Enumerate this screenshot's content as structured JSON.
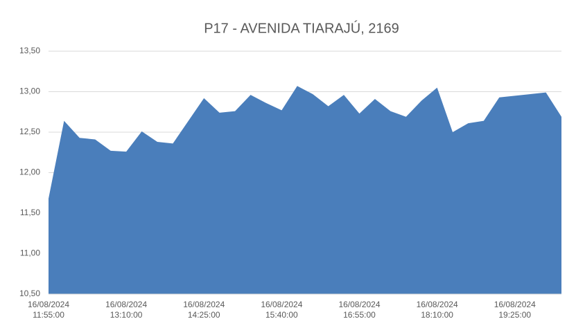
{
  "chart_data": {
    "type": "area",
    "title": "P17 - AVENIDA TIARAJÚ, 2169",
    "categories": [
      "16/08/2024 11:55:00",
      null,
      null,
      null,
      null,
      "16/08/2024 13:10:00",
      null,
      null,
      null,
      null,
      "16/08/2024 14:25:00",
      null,
      null,
      null,
      null,
      "16/08/2024 15:40:00",
      null,
      null,
      null,
      null,
      "16/08/2024 16:55:00",
      null,
      null,
      null,
      null,
      "16/08/2024 18:10:00",
      null,
      null,
      null,
      null,
      "16/08/2024 19:25:00",
      null,
      null,
      null
    ],
    "values": [
      11.68,
      12.64,
      12.43,
      12.41,
      12.27,
      12.26,
      12.51,
      12.38,
      12.36,
      12.64,
      12.92,
      12.74,
      12.76,
      12.96,
      12.86,
      12.77,
      13.07,
      12.97,
      12.82,
      12.96,
      12.73,
      12.91,
      12.76,
      12.69,
      12.89,
      13.05,
      12.5,
      12.61,
      12.64,
      12.93,
      12.95,
      12.97,
      12.99,
      12.69
    ],
    "color": "#4a7ebb",
    "ylim": [
      10.5,
      13.5
    ],
    "yticks": [
      {
        "value": 10.5,
        "label": "10,50"
      },
      {
        "value": 11,
        "label": "11,00"
      },
      {
        "value": 11.5,
        "label": "11,50"
      },
      {
        "value": 12,
        "label": "12,00"
      },
      {
        "value": 12.5,
        "label": "12,50"
      },
      {
        "value": 13,
        "label": "13,00"
      },
      {
        "value": 13.5,
        "label": "13,50"
      }
    ],
    "grid": true
  }
}
